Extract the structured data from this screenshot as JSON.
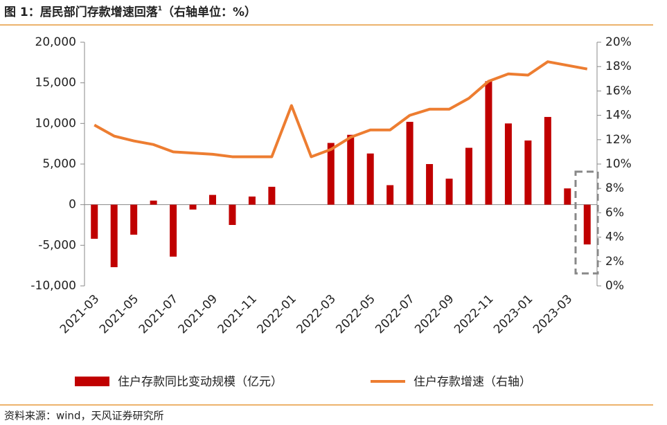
{
  "chart_data": {
    "type": "bar_line",
    "title": "图 1：居民部门存款增速回落",
    "title_note": "1",
    "title_suffix": "（右轴单位：%）",
    "source": "资料来源：wind，天风证券研究所",
    "categories": [
      "2021-03",
      null,
      "2021-05",
      null,
      "2021-07",
      null,
      "2021-09",
      null,
      "2021-11",
      null,
      "2022-01",
      null,
      "2022-03",
      null,
      "2022-05",
      null,
      "2022-07",
      null,
      "2022-09",
      null,
      "2022-11",
      null,
      "2023-01",
      null,
      "2023-03",
      null
    ],
    "series": [
      {
        "name": "住户存款同比变动规模（亿元）",
        "color": "#c00000",
        "type": "bar",
        "values": [
          -4200,
          -7700,
          -3700,
          500,
          -6400,
          -600,
          1200,
          -2500,
          1000,
          2200,
          0,
          0,
          7600,
          8600,
          6300,
          2400,
          10200,
          5000,
          3200,
          7000,
          15200,
          10000,
          7900,
          10800,
          2000,
          -4900
        ]
      },
      {
        "name": "住户存款增速（右轴）",
        "color": "#ed7d31",
        "type": "line",
        "axis": "y2",
        "values": [
          13.2,
          12.3,
          11.9,
          11.6,
          11.0,
          10.9,
          10.8,
          10.6,
          10.6,
          10.6,
          14.8,
          10.6,
          11.2,
          12.2,
          12.8,
          12.8,
          14.0,
          14.5,
          14.5,
          15.4,
          16.8,
          17.4,
          17.3,
          18.4,
          18.1,
          17.8
        ]
      }
    ],
    "ylim": [
      -10000,
      20000
    ],
    "yticks": [
      {
        "value": -10000,
        "label": "-10,000"
      },
      {
        "value": -5000,
        "label": "-5,000"
      },
      0,
      {
        "value": 5000,
        "label": "5,000"
      },
      {
        "value": 10000,
        "label": "10,000"
      },
      {
        "value": 15000,
        "label": "15,000"
      },
      {
        "value": 20000,
        "label": "20,000"
      }
    ],
    "y2lim": [
      0,
      20
    ],
    "y2ticks": [
      {
        "value": 0,
        "label": "0%"
      },
      {
        "value": 2,
        "label": "2%"
      },
      {
        "value": 4,
        "label": "4%"
      },
      {
        "value": 6,
        "label": "6%"
      },
      {
        "value": 8,
        "label": "8%"
      },
      {
        "value": 10,
        "label": "10%"
      },
      {
        "value": 12,
        "label": "12%"
      },
      {
        "value": 14,
        "label": "14%"
      },
      {
        "value": 16,
        "label": "16%"
      },
      {
        "value": 18,
        "label": "18%"
      },
      {
        "value": 20,
        "label": "20%"
      }
    ]
  }
}
